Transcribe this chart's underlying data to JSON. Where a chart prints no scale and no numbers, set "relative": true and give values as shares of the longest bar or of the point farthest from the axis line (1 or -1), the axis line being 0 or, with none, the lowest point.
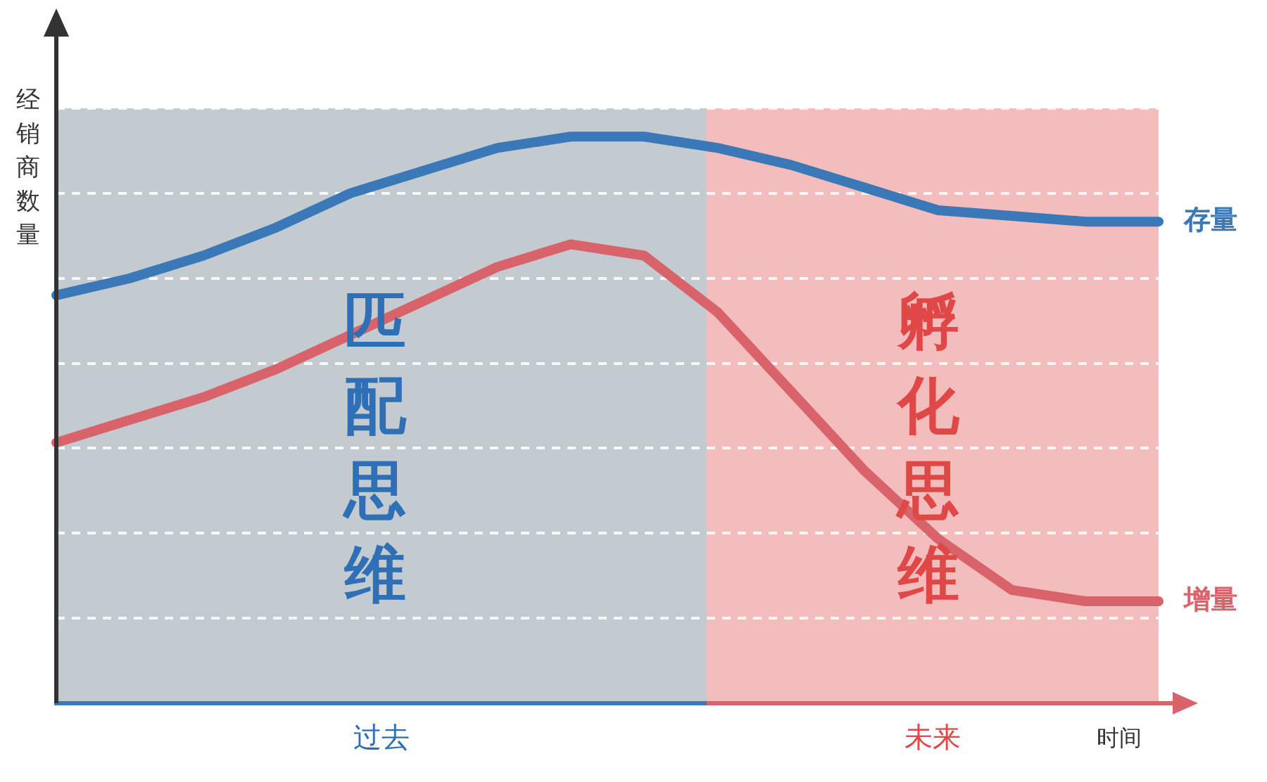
{
  "chart_data": {
    "type": "line",
    "relative": true,
    "ylabel": "经销商数量",
    "xlabel": "时间",
    "grid": "y",
    "legend": false,
    "marker": "none",
    "line_style": "solid",
    "categories": [
      null,
      null,
      null,
      null,
      null,
      null,
      null,
      null,
      null,
      null,
      null,
      null,
      null,
      null,
      null,
      null
    ],
    "series": [
      {
        "name": "存量",
        "color": "#3a78b8",
        "values": [
          0.72,
          0.75,
          0.79,
          0.84,
          0.9,
          0.94,
          0.98,
          1.0,
          1.0,
          0.98,
          0.95,
          0.91,
          0.87,
          0.86,
          0.85,
          0.85
        ]
      },
      {
        "name": "增量",
        "color": "#d9636a",
        "values": [
          0.46,
          0.5,
          0.54,
          0.59,
          0.65,
          0.71,
          0.77,
          0.81,
          0.79,
          0.69,
          0.55,
          0.41,
          0.29,
          0.2,
          0.18,
          0.18
        ]
      }
    ],
    "annotations": [
      "匹配思维",
      "孵化思维",
      "过去",
      "未来"
    ]
  }
}
